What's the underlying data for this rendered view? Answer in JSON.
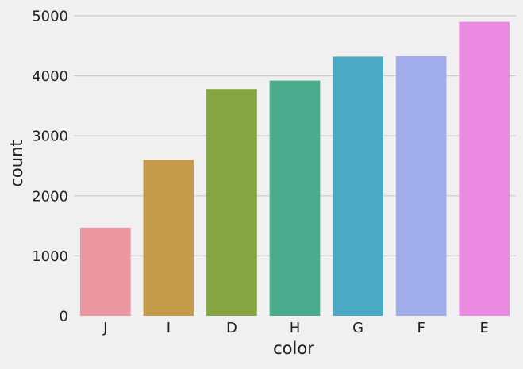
{
  "chart_data": {
    "type": "bar",
    "title": "",
    "xlabel": "color",
    "ylabel": "count",
    "categories": [
      "J",
      "I",
      "D",
      "H",
      "G",
      "F",
      "E"
    ],
    "values": [
      1470,
      2600,
      3780,
      3920,
      4320,
      4330,
      4900
    ],
    "colors": [
      "#ec96a1",
      "#c49a4b",
      "#85a543",
      "#4aac8c",
      "#4baac3",
      "#a1adea",
      "#ea8ae0"
    ],
    "ylim": [
      0,
      5000
    ],
    "yticks": [
      "0",
      "1000",
      "2000",
      "3000",
      "4000",
      "5000"
    ],
    "ytick_values": [
      0,
      1000,
      2000,
      3000,
      4000,
      5000
    ],
    "grid": "horizontal",
    "background": "#f0f0f0",
    "grid_color": "#cbcbcb"
  }
}
